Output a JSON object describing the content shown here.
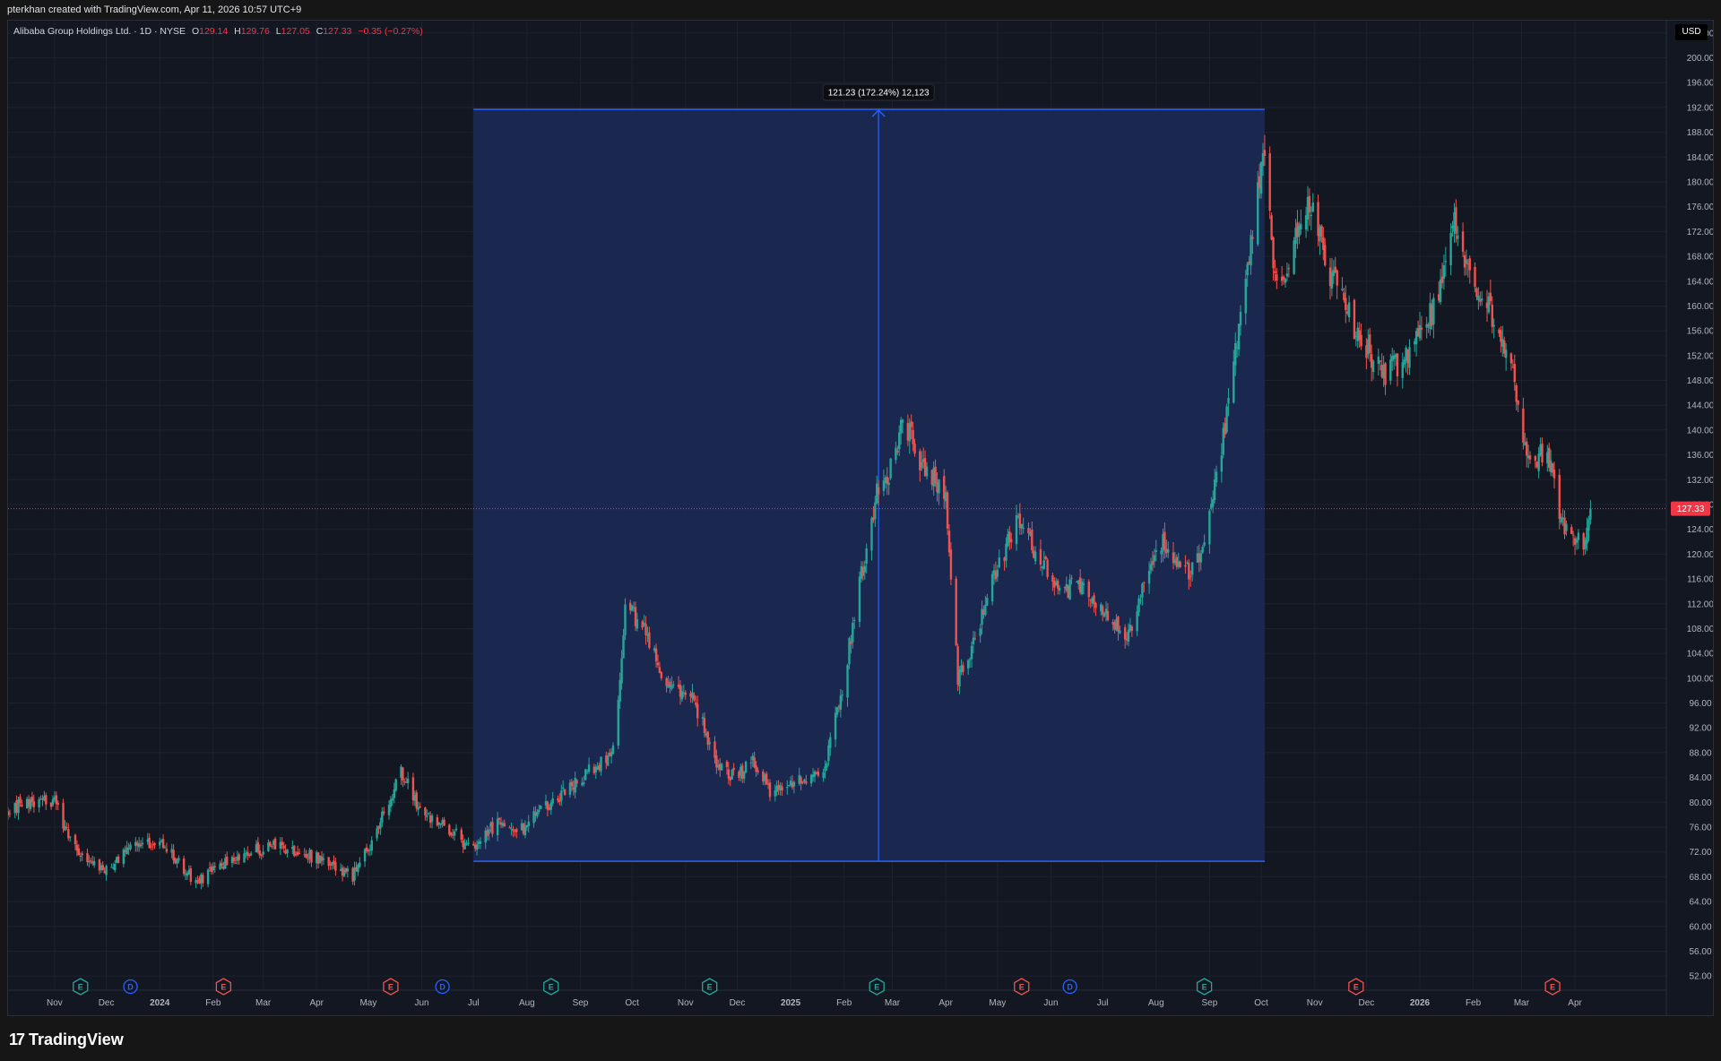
{
  "header": {
    "credit": "pterkhan created with TradingView.com, Apr 11, 2026 10:57 UTC+9"
  },
  "legend": {
    "symbol": "Alibaba Group Holdings Ltd. · 1D · NYSE",
    "open_label": "O",
    "open": "129.14",
    "high_label": "H",
    "high": "129.76",
    "low_label": "L",
    "low": "127.05",
    "close_label": "C",
    "close": "127.33",
    "change": "−0.35 (−0.27%)"
  },
  "currency": "USD",
  "footer": {
    "brand": "TradingView",
    "logo_icon": "tradingview-logo-icon"
  },
  "colors": {
    "up": "#26a69a",
    "down": "#ef5350",
    "range_fill": "#1c2a56",
    "range_line": "#2962ff",
    "price_line": "#f23645"
  },
  "chart_data": {
    "type": "candlestick",
    "y_range": [
      50,
      206
    ],
    "y_ticks": [
      "204.00",
      "200.00",
      "196.00",
      "192.00",
      "188.00",
      "184.00",
      "180.00",
      "176.00",
      "172.00",
      "168.00",
      "164.00",
      "160.00",
      "156.00",
      "152.00",
      "148.00",
      "144.00",
      "140.00",
      "136.00",
      "132.00",
      "128.00",
      "124.00",
      "120.00",
      "116.00",
      "112.00",
      "108.00",
      "104.00",
      "100.00",
      "96.00",
      "92.00",
      "88.00",
      "84.00",
      "80.00",
      "76.00",
      "72.00",
      "68.00",
      "64.00",
      "60.00",
      "56.00",
      "52.00"
    ],
    "x_ticks": [
      {
        "date": "2023-11-01",
        "label": "Nov"
      },
      {
        "date": "2023-12-01",
        "label": "Dec"
      },
      {
        "date": "2024-01-01",
        "label": "2024"
      },
      {
        "date": "2024-02-01",
        "label": "Feb"
      },
      {
        "date": "2024-03-01",
        "label": "Mar"
      },
      {
        "date": "2024-04-01",
        "label": "Apr"
      },
      {
        "date": "2024-05-01",
        "label": "May"
      },
      {
        "date": "2024-06-01",
        "label": "Jun"
      },
      {
        "date": "2024-07-01",
        "label": "Jul"
      },
      {
        "date": "2024-08-01",
        "label": "Aug"
      },
      {
        "date": "2024-09-01",
        "label": "Sep"
      },
      {
        "date": "2024-10-01",
        "label": "Oct"
      },
      {
        "date": "2024-11-01",
        "label": "Nov"
      },
      {
        "date": "2024-12-01",
        "label": "Dec"
      },
      {
        "date": "2025-01-01",
        "label": "2025"
      },
      {
        "date": "2025-02-01",
        "label": "Feb"
      },
      {
        "date": "2025-03-01",
        "label": "Mar"
      },
      {
        "date": "2025-04-01",
        "label": "Apr"
      },
      {
        "date": "2025-05-01",
        "label": "May"
      },
      {
        "date": "2025-06-01",
        "label": "Jun"
      },
      {
        "date": "2025-07-01",
        "label": "Jul"
      },
      {
        "date": "2025-08-01",
        "label": "Aug"
      },
      {
        "date": "2025-09-01",
        "label": "Sep"
      },
      {
        "date": "2025-10-01",
        "label": "Oct"
      },
      {
        "date": "2025-11-01",
        "label": "Nov"
      },
      {
        "date": "2025-12-01",
        "label": "Dec"
      },
      {
        "date": "2026-01-01",
        "label": "2026"
      },
      {
        "date": "2026-02-01",
        "label": "Feb"
      },
      {
        "date": "2026-03-01",
        "label": "Mar"
      },
      {
        "date": "2026-04-01",
        "label": "Apr"
      }
    ],
    "x_start": "2023-10-05",
    "x_end": "2026-05-24",
    "series_path": [
      [
        "2023-10-05",
        79
      ],
      [
        "2023-10-20",
        80
      ],
      [
        "2023-11-01",
        80
      ],
      [
        "2023-11-10",
        74
      ],
      [
        "2023-11-20",
        71
      ],
      [
        "2023-12-01",
        69
      ],
      [
        "2023-12-15",
        73
      ],
      [
        "2024-01-01",
        74
      ],
      [
        "2024-01-22",
        67
      ],
      [
        "2024-02-05",
        70
      ],
      [
        "2024-02-20",
        72
      ],
      [
        "2024-03-10",
        73
      ],
      [
        "2024-04-01",
        71
      ],
      [
        "2024-04-22",
        68
      ],
      [
        "2024-05-05",
        75
      ],
      [
        "2024-05-20",
        85
      ],
      [
        "2024-06-01",
        78
      ],
      [
        "2024-06-20",
        75
      ],
      [
        "2024-07-01",
        72
      ],
      [
        "2024-07-15",
        77
      ],
      [
        "2024-07-30",
        76
      ],
      [
        "2024-08-15",
        80
      ],
      [
        "2024-09-01",
        84
      ],
      [
        "2024-09-20",
        88
      ],
      [
        "2024-09-27",
        111
      ],
      [
        "2024-10-07",
        109
      ],
      [
        "2024-10-20",
        100
      ],
      [
        "2024-11-05",
        97
      ],
      [
        "2024-11-20",
        86
      ],
      [
        "2024-12-01",
        84
      ],
      [
        "2024-12-10",
        87
      ],
      [
        "2024-12-20",
        82
      ],
      [
        "2025-01-10",
        84
      ],
      [
        "2025-01-20",
        85
      ],
      [
        "2025-02-01",
        100
      ],
      [
        "2025-02-10",
        115
      ],
      [
        "2025-02-20",
        130
      ],
      [
        "2025-03-01",
        134
      ],
      [
        "2025-03-08",
        142
      ],
      [
        "2025-03-15",
        136
      ],
      [
        "2025-03-25",
        132
      ],
      [
        "2025-04-01",
        130
      ],
      [
        "2025-04-08",
        100
      ],
      [
        "2025-04-18",
        106
      ],
      [
        "2025-05-01",
        118
      ],
      [
        "2025-05-14",
        126
      ],
      [
        "2025-05-25",
        119
      ],
      [
        "2025-06-05",
        115
      ],
      [
        "2025-06-20",
        114
      ],
      [
        "2025-07-05",
        110
      ],
      [
        "2025-07-15",
        106
      ],
      [
        "2025-07-25",
        115
      ],
      [
        "2025-08-05",
        122
      ],
      [
        "2025-08-20",
        117
      ],
      [
        "2025-08-28",
        121
      ],
      [
        "2025-09-05",
        132
      ],
      [
        "2025-09-15",
        150
      ],
      [
        "2025-09-25",
        170
      ],
      [
        "2025-10-02",
        185
      ],
      [
        "2025-10-10",
        163
      ],
      [
        "2025-10-20",
        170
      ],
      [
        "2025-10-28",
        177
      ],
      [
        "2025-11-10",
        165
      ],
      [
        "2025-11-25",
        156
      ],
      [
        "2025-12-10",
        149
      ],
      [
        "2025-12-25",
        152
      ],
      [
        "2026-01-10",
        160
      ],
      [
        "2026-01-20",
        174
      ],
      [
        "2026-01-30",
        164
      ],
      [
        "2026-02-10",
        160
      ],
      [
        "2026-02-25",
        148
      ],
      [
        "2026-03-05",
        135
      ],
      [
        "2026-03-15",
        137
      ],
      [
        "2026-03-25",
        125
      ],
      [
        "2026-04-05",
        121
      ],
      [
        "2026-04-10",
        127
      ]
    ],
    "last_price": 127.33,
    "last_price_label": "127.33",
    "measure": {
      "start_date": "2024-07-01",
      "end_date": "2025-10-03",
      "low": 70.5,
      "high": 191.7,
      "arrow_date": "2025-02-21",
      "label": "121.23 (172.24%) 12,123"
    },
    "events": [
      {
        "date": "2023-11-16",
        "type": "E",
        "color": "#26a69a"
      },
      {
        "date": "2023-12-15",
        "type": "D",
        "color": "#2962ff"
      },
      {
        "date": "2024-02-07",
        "type": "E",
        "color": "#ef5350"
      },
      {
        "date": "2024-05-14",
        "type": "E",
        "color": "#ef5350"
      },
      {
        "date": "2024-06-13",
        "type": "D",
        "color": "#2962ff"
      },
      {
        "date": "2024-08-15",
        "type": "E",
        "color": "#26a69a"
      },
      {
        "date": "2024-11-15",
        "type": "E",
        "color": "#26a69a"
      },
      {
        "date": "2025-02-20",
        "type": "E",
        "color": "#26a69a"
      },
      {
        "date": "2025-05-15",
        "type": "E",
        "color": "#ef5350"
      },
      {
        "date": "2025-06-12",
        "type": "D",
        "color": "#2962ff"
      },
      {
        "date": "2025-08-29",
        "type": "E",
        "color": "#26a69a"
      },
      {
        "date": "2025-11-25",
        "type": "E",
        "color": "#ef5350"
      },
      {
        "date": "2026-03-19",
        "type": "E",
        "color": "#ef5350"
      }
    ]
  }
}
